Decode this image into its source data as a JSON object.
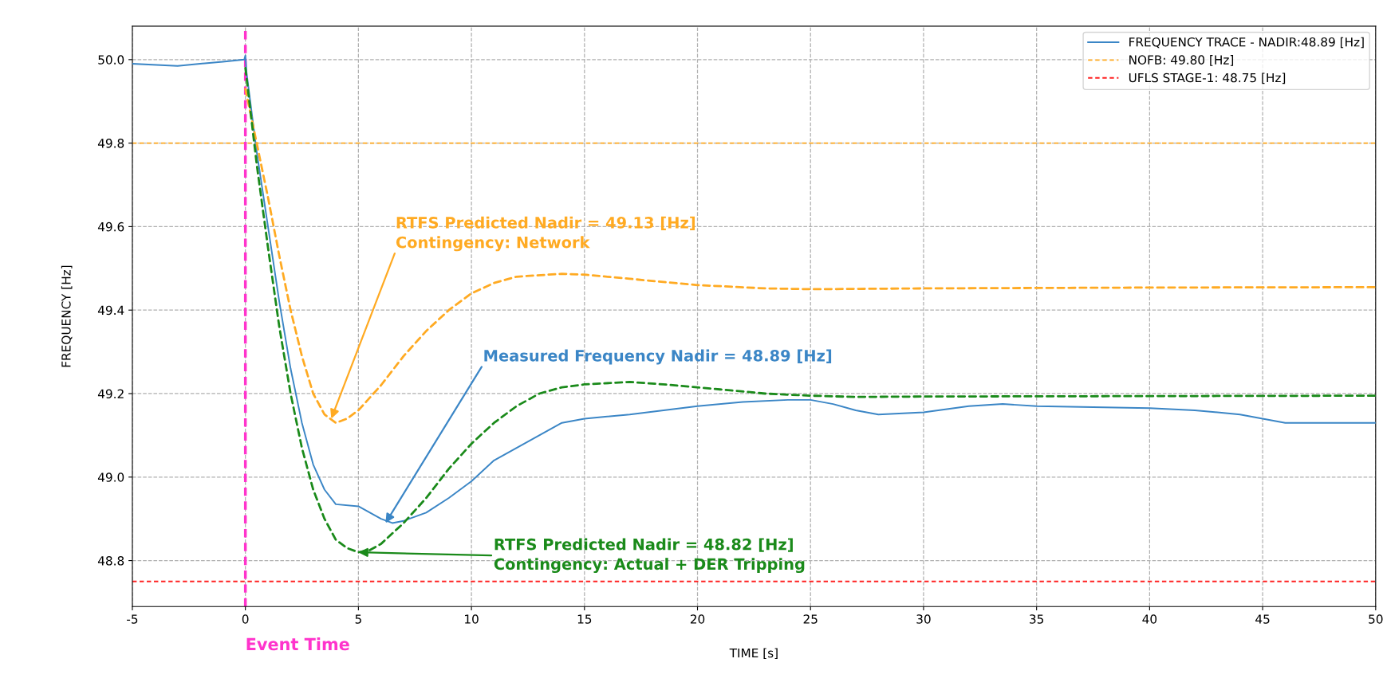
{
  "chart_data": {
    "type": "line",
    "xlabel": "TIME [s]",
    "ylabel": "FREQUENCY [Hz]",
    "xlim": [
      -5,
      50
    ],
    "ylim": [
      48.69,
      50.08
    ],
    "xticks": [
      -5,
      0,
      5,
      10,
      15,
      20,
      25,
      30,
      35,
      40,
      45,
      50
    ],
    "yticks": [
      48.8,
      {
        "value": 49,
        "label": "49.0"
      },
      49.2,
      49.4,
      49.6,
      49.8,
      {
        "value": 50,
        "label": "50.0"
      }
    ],
    "grid": true,
    "legend": "top right",
    "series": [
      {
        "name": "FREQUENCY TRACE - NADIR:48.89 [Hz]",
        "color": "#3b86c6",
        "line_style": "solid",
        "x": [
          -5,
          -3,
          -1,
          -0.05,
          0,
          0.05,
          0.5,
          1,
          1.5,
          2,
          2.5,
          3,
          3.5,
          4,
          5,
          6,
          6.5,
          7,
          8,
          9,
          10,
          11,
          12,
          13,
          14,
          15,
          17,
          20,
          22,
          24,
          25,
          26,
          27,
          28,
          30,
          32,
          33.5,
          35,
          40,
          42,
          44,
          45,
          46,
          50
        ],
        "values": [
          49.99,
          49.985,
          49.995,
          50.0,
          50.01,
          49.97,
          49.78,
          49.6,
          49.42,
          49.26,
          49.13,
          49.03,
          48.97,
          48.935,
          48.93,
          48.9,
          48.89,
          48.895,
          48.915,
          48.95,
          48.99,
          49.04,
          49.07,
          49.1,
          49.13,
          49.14,
          49.15,
          49.17,
          49.18,
          49.185,
          49.185,
          49.175,
          49.16,
          49.15,
          49.155,
          49.17,
          49.175,
          49.17,
          49.165,
          49.16,
          49.15,
          49.14,
          49.13,
          49.13
        ]
      },
      {
        "color": "#ffaa22",
        "line_style": "dashed",
        "x": [
          0,
          0.5,
          1,
          1.5,
          2,
          2.5,
          3,
          3.5,
          4,
          4.5,
          5,
          6,
          7,
          8,
          9,
          10,
          11,
          12,
          14,
          15,
          17,
          20,
          23,
          25,
          30,
          40,
          50
        ],
        "values": [
          49.93,
          49.8,
          49.67,
          49.53,
          49.4,
          49.29,
          49.2,
          49.15,
          49.13,
          49.14,
          49.16,
          49.22,
          49.29,
          49.35,
          49.4,
          49.44,
          49.465,
          49.48,
          49.487,
          49.485,
          49.475,
          49.46,
          49.452,
          49.45,
          49.452,
          49.454,
          49.455
        ]
      },
      {
        "color": "#1a8a1a",
        "line_style": "dashed",
        "x": [
          0,
          0.5,
          1,
          1.5,
          2,
          2.5,
          3,
          3.5,
          4,
          4.5,
          5,
          5.5,
          6,
          7,
          8,
          9,
          10,
          11,
          12,
          13,
          14,
          15,
          17,
          19,
          21,
          23,
          25,
          27,
          30,
          50
        ],
        "values": [
          49.98,
          49.75,
          49.55,
          49.36,
          49.2,
          49.07,
          48.97,
          48.9,
          48.85,
          48.83,
          48.82,
          48.825,
          48.84,
          48.89,
          48.95,
          49.02,
          49.08,
          49.13,
          49.17,
          49.2,
          49.215,
          49.222,
          49.228,
          49.22,
          49.21,
          49.2,
          49.195,
          49.192,
          49.193,
          49.195
        ]
      }
    ],
    "ref_lines": [
      {
        "axis": "y",
        "value": 49.8,
        "label": "NOFB: 49.80 [Hz]",
        "color": "#ffaa22",
        "line_style": "dashed"
      },
      {
        "axis": "y",
        "value": 48.75,
        "label": "UFLS STAGE-1: 48.75 [Hz]",
        "color": "#ff2222",
        "line_style": "dashed"
      },
      {
        "axis": "x",
        "value": 0,
        "label": "Event Time",
        "color": "#ff33cc",
        "line_style": "dashed"
      }
    ],
    "annotations": [
      {
        "text": "Measured Frequency Nadir = 48.89 [Hz]",
        "x": 6.2,
        "y": 48.89
      },
      {
        "text": "RTFS Predicted Nadir = 49.13 [Hz]\nContingency: Network",
        "x": 3.8,
        "y": 49.14
      },
      {
        "text": "RTFS Predicted Nadir = 48.82 [Hz]\nContingency: Actual + DER Tripping",
        "x": 5,
        "y": 48.82
      }
    ]
  }
}
